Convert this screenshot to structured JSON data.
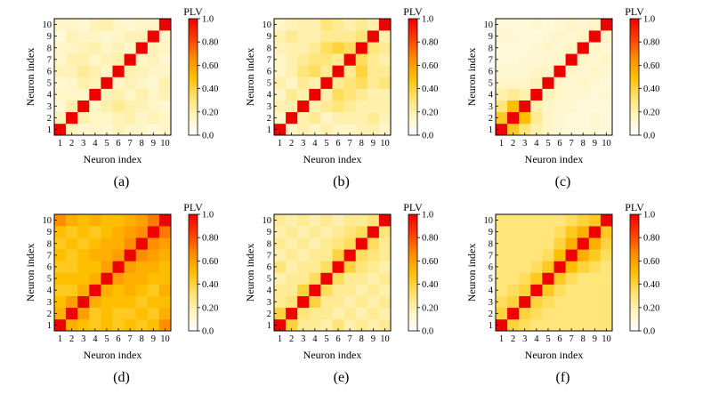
{
  "figure": {
    "shared": {
      "xlabel": "Neuron index",
      "ylabel": "Neuron index",
      "colorbar_title": "PLV",
      "tick_labels": [
        "1",
        "2",
        "3",
        "4",
        "5",
        "6",
        "7",
        "8",
        "9",
        "10"
      ],
      "colorbar_ticks": [
        "0.0",
        "0.20",
        "0.40",
        "0.60",
        "0.80",
        "1.0"
      ],
      "colormap": [
        "#ffffff",
        "#fff4c0",
        "#ffe168",
        "#ffbf00",
        "#ff8a00",
        "#ff3c00",
        "#ee0000"
      ]
    }
  },
  "chart_data": [
    {
      "type": "heatmap",
      "panel_label": "(a)",
      "title": "",
      "xlabel": "Neuron index",
      "ylabel": "Neuron index",
      "x_categories": [
        "1",
        "2",
        "3",
        "4",
        "5",
        "6",
        "7",
        "8",
        "9",
        "10"
      ],
      "y_categories": [
        "1",
        "2",
        "3",
        "4",
        "5",
        "6",
        "7",
        "8",
        "9",
        "10"
      ],
      "colorbar": {
        "label": "PLV",
        "range": [
          0,
          1
        ],
        "ticks": [
          "0.0",
          "0.20",
          "0.40",
          "0.60",
          "0.80",
          "1.0"
        ]
      },
      "matrix": [
        [
          1.0,
          0.18,
          0.12,
          0.15,
          0.12,
          0.18,
          0.14,
          0.15,
          0.1,
          0.15
        ],
        [
          0.18,
          1.0,
          0.2,
          0.15,
          0.15,
          0.18,
          0.2,
          0.15,
          0.18,
          0.15
        ],
        [
          0.12,
          0.2,
          1.0,
          0.15,
          0.2,
          0.25,
          0.2,
          0.18,
          0.15,
          0.12
        ],
        [
          0.15,
          0.15,
          0.15,
          1.0,
          0.18,
          0.2,
          0.15,
          0.2,
          0.15,
          0.18
        ],
        [
          0.12,
          0.15,
          0.2,
          0.18,
          1.0,
          0.15,
          0.18,
          0.15,
          0.12,
          0.2
        ],
        [
          0.18,
          0.18,
          0.25,
          0.2,
          0.15,
          1.0,
          0.2,
          0.18,
          0.15,
          0.15
        ],
        [
          0.14,
          0.2,
          0.2,
          0.15,
          0.18,
          0.2,
          1.0,
          0.15,
          0.18,
          0.12
        ],
        [
          0.15,
          0.15,
          0.18,
          0.2,
          0.15,
          0.18,
          0.15,
          1.0,
          0.18,
          0.15
        ],
        [
          0.1,
          0.18,
          0.15,
          0.15,
          0.12,
          0.15,
          0.18,
          0.18,
          1.0,
          0.15
        ],
        [
          0.15,
          0.15,
          0.12,
          0.18,
          0.2,
          0.15,
          0.12,
          0.15,
          0.15,
          1.0
        ]
      ]
    },
    {
      "type": "heatmap",
      "panel_label": "(b)",
      "title": "",
      "xlabel": "Neuron index",
      "ylabel": "Neuron index",
      "x_categories": [
        "1",
        "2",
        "3",
        "4",
        "5",
        "6",
        "7",
        "8",
        "9",
        "10"
      ],
      "y_categories": [
        "1",
        "2",
        "3",
        "4",
        "5",
        "6",
        "7",
        "8",
        "9",
        "10"
      ],
      "colorbar": {
        "label": "PLV",
        "range": [
          0,
          1
        ],
        "ticks": [
          "0.0",
          "0.20",
          "0.40",
          "0.60",
          "0.80",
          "1.0"
        ]
      },
      "matrix": [
        [
          1.0,
          0.15,
          0.2,
          0.15,
          0.2,
          0.15,
          0.15,
          0.18,
          0.2,
          0.15
        ],
        [
          0.15,
          1.0,
          0.2,
          0.25,
          0.15,
          0.2,
          0.2,
          0.2,
          0.25,
          0.18
        ],
        [
          0.2,
          0.2,
          1.0,
          0.2,
          0.25,
          0.3,
          0.25,
          0.2,
          0.2,
          0.2
        ],
        [
          0.15,
          0.25,
          0.2,
          1.0,
          0.2,
          0.35,
          0.3,
          0.25,
          0.2,
          0.2
        ],
        [
          0.2,
          0.15,
          0.25,
          0.2,
          1.0,
          0.25,
          0.3,
          0.35,
          0.25,
          0.3
        ],
        [
          0.15,
          0.2,
          0.3,
          0.35,
          0.25,
          1.0,
          0.25,
          0.4,
          0.25,
          0.25
        ],
        [
          0.15,
          0.2,
          0.25,
          0.3,
          0.3,
          0.25,
          1.0,
          0.35,
          0.25,
          0.2
        ],
        [
          0.18,
          0.2,
          0.2,
          0.25,
          0.35,
          0.4,
          0.35,
          1.0,
          0.3,
          0.25
        ],
        [
          0.2,
          0.25,
          0.2,
          0.2,
          0.25,
          0.25,
          0.25,
          0.3,
          1.0,
          0.2
        ],
        [
          0.15,
          0.18,
          0.2,
          0.2,
          0.3,
          0.25,
          0.2,
          0.25,
          0.2,
          1.0
        ]
      ]
    },
    {
      "type": "heatmap",
      "panel_label": "(c)",
      "title": "",
      "xlabel": "Neuron index",
      "ylabel": "Neuron index",
      "x_categories": [
        "1",
        "2",
        "3",
        "4",
        "5",
        "6",
        "7",
        "8",
        "9",
        "10"
      ],
      "y_categories": [
        "1",
        "2",
        "3",
        "4",
        "5",
        "6",
        "7",
        "8",
        "9",
        "10"
      ],
      "colorbar": {
        "label": "PLV",
        "range": [
          0,
          1
        ],
        "ticks": [
          "0.0",
          "0.20",
          "0.40",
          "0.60",
          "0.80",
          "1.0"
        ]
      },
      "matrix": [
        [
          1.0,
          0.45,
          0.3,
          0.2,
          0.15,
          0.12,
          0.1,
          0.1,
          0.12,
          0.1
        ],
        [
          0.45,
          1.0,
          0.5,
          0.25,
          0.15,
          0.12,
          0.1,
          0.1,
          0.12,
          0.1
        ],
        [
          0.3,
          0.5,
          1.0,
          0.2,
          0.15,
          0.12,
          0.12,
          0.1,
          0.1,
          0.1
        ],
        [
          0.2,
          0.25,
          0.2,
          1.0,
          0.18,
          0.15,
          0.12,
          0.12,
          0.1,
          0.12
        ],
        [
          0.15,
          0.15,
          0.15,
          0.18,
          1.0,
          0.15,
          0.12,
          0.15,
          0.12,
          0.1
        ],
        [
          0.12,
          0.12,
          0.12,
          0.15,
          0.15,
          1.0,
          0.15,
          0.12,
          0.15,
          0.12
        ],
        [
          0.1,
          0.1,
          0.12,
          0.12,
          0.12,
          0.15,
          1.0,
          0.15,
          0.12,
          0.15
        ],
        [
          0.1,
          0.1,
          0.1,
          0.12,
          0.15,
          0.12,
          0.15,
          1.0,
          0.15,
          0.12
        ],
        [
          0.12,
          0.12,
          0.1,
          0.1,
          0.12,
          0.15,
          0.12,
          0.15,
          1.0,
          0.15
        ],
        [
          0.1,
          0.1,
          0.1,
          0.12,
          0.1,
          0.12,
          0.15,
          0.12,
          0.15,
          1.0
        ]
      ]
    },
    {
      "type": "heatmap",
      "panel_label": "(d)",
      "title": "",
      "xlabel": "Neuron index",
      "ylabel": "Neuron index",
      "x_categories": [
        "1",
        "2",
        "3",
        "4",
        "5",
        "6",
        "7",
        "8",
        "9",
        "10"
      ],
      "y_categories": [
        "1",
        "2",
        "3",
        "4",
        "5",
        "6",
        "7",
        "8",
        "9",
        "10"
      ],
      "colorbar": {
        "label": "PLV",
        "range": [
          0,
          1
        ],
        "ticks": [
          "0.0",
          "0.20",
          "0.40",
          "0.60",
          "0.80",
          "1.0"
        ]
      },
      "matrix": [
        [
          1.0,
          0.55,
          0.5,
          0.45,
          0.5,
          0.45,
          0.5,
          0.45,
          0.5,
          0.65
        ],
        [
          0.55,
          1.0,
          0.6,
          0.45,
          0.5,
          0.45,
          0.45,
          0.5,
          0.45,
          0.55
        ],
        [
          0.5,
          0.6,
          1.0,
          0.55,
          0.5,
          0.5,
          0.5,
          0.45,
          0.5,
          0.5
        ],
        [
          0.45,
          0.45,
          0.55,
          1.0,
          0.55,
          0.5,
          0.55,
          0.5,
          0.45,
          0.55
        ],
        [
          0.5,
          0.5,
          0.5,
          0.55,
          1.0,
          0.6,
          0.55,
          0.55,
          0.5,
          0.5
        ],
        [
          0.45,
          0.45,
          0.5,
          0.5,
          0.6,
          1.0,
          0.6,
          0.55,
          0.55,
          0.5
        ],
        [
          0.5,
          0.45,
          0.5,
          0.55,
          0.55,
          0.6,
          1.0,
          0.65,
          0.6,
          0.55
        ],
        [
          0.45,
          0.5,
          0.45,
          0.5,
          0.55,
          0.55,
          0.65,
          1.0,
          0.65,
          0.6
        ],
        [
          0.5,
          0.45,
          0.5,
          0.45,
          0.5,
          0.55,
          0.6,
          0.65,
          1.0,
          0.7
        ],
        [
          0.65,
          0.55,
          0.5,
          0.55,
          0.5,
          0.5,
          0.55,
          0.6,
          0.7,
          1.0
        ]
      ]
    },
    {
      "type": "heatmap",
      "panel_label": "(e)",
      "title": "",
      "xlabel": "Neuron index",
      "ylabel": "Neuron index",
      "x_categories": [
        "1",
        "2",
        "3",
        "4",
        "5",
        "6",
        "7",
        "8",
        "9",
        "10"
      ],
      "y_categories": [
        "1",
        "2",
        "3",
        "4",
        "5",
        "6",
        "7",
        "8",
        "9",
        "10"
      ],
      "colorbar": {
        "label": "PLV",
        "range": [
          0,
          1
        ],
        "ticks": [
          "0.0",
          "0.20",
          "0.40",
          "0.60",
          "0.80",
          "1.0"
        ]
      },
      "matrix": [
        [
          1.0,
          0.4,
          0.25,
          0.25,
          0.2,
          0.3,
          0.2,
          0.25,
          0.2,
          0.25
        ],
        [
          0.4,
          1.0,
          0.3,
          0.25,
          0.25,
          0.2,
          0.25,
          0.2,
          0.25,
          0.2
        ],
        [
          0.25,
          0.3,
          1.0,
          0.4,
          0.25,
          0.25,
          0.2,
          0.25,
          0.2,
          0.25
        ],
        [
          0.25,
          0.25,
          0.4,
          1.0,
          0.35,
          0.25,
          0.25,
          0.2,
          0.25,
          0.2
        ],
        [
          0.2,
          0.25,
          0.25,
          0.35,
          1.0,
          0.35,
          0.25,
          0.25,
          0.2,
          0.25
        ],
        [
          0.3,
          0.2,
          0.25,
          0.25,
          0.35,
          1.0,
          0.4,
          0.3,
          0.25,
          0.2
        ],
        [
          0.2,
          0.25,
          0.2,
          0.25,
          0.25,
          0.4,
          1.0,
          0.35,
          0.3,
          0.25
        ],
        [
          0.25,
          0.2,
          0.25,
          0.2,
          0.25,
          0.3,
          0.35,
          1.0,
          0.35,
          0.25
        ],
        [
          0.2,
          0.25,
          0.2,
          0.25,
          0.2,
          0.25,
          0.3,
          0.35,
          1.0,
          0.3
        ],
        [
          0.25,
          0.2,
          0.25,
          0.2,
          0.25,
          0.2,
          0.25,
          0.25,
          0.3,
          1.0
        ]
      ]
    },
    {
      "type": "heatmap",
      "panel_label": "(f)",
      "title": "",
      "xlabel": "Neuron index",
      "ylabel": "Neuron index",
      "x_categories": [
        "1",
        "2",
        "3",
        "4",
        "5",
        "6",
        "7",
        "8",
        "9",
        "10"
      ],
      "y_categories": [
        "1",
        "2",
        "3",
        "4",
        "5",
        "6",
        "7",
        "8",
        "9",
        "10"
      ],
      "colorbar": {
        "label": "PLV",
        "range": [
          0,
          1
        ],
        "ticks": [
          "0.0",
          "0.20",
          "0.40",
          "0.60",
          "0.80",
          "1.0"
        ]
      },
      "matrix": [
        [
          1.0,
          0.4,
          0.35,
          0.3,
          0.3,
          0.3,
          0.3,
          0.3,
          0.3,
          0.3
        ],
        [
          0.4,
          1.0,
          0.4,
          0.35,
          0.3,
          0.3,
          0.3,
          0.3,
          0.3,
          0.3
        ],
        [
          0.35,
          0.4,
          1.0,
          0.4,
          0.35,
          0.3,
          0.3,
          0.3,
          0.3,
          0.3
        ],
        [
          0.3,
          0.35,
          0.4,
          1.0,
          0.45,
          0.35,
          0.3,
          0.3,
          0.3,
          0.3
        ],
        [
          0.3,
          0.3,
          0.35,
          0.45,
          1.0,
          0.45,
          0.35,
          0.3,
          0.3,
          0.3
        ],
        [
          0.3,
          0.3,
          0.3,
          0.35,
          0.45,
          1.0,
          0.5,
          0.4,
          0.35,
          0.3
        ],
        [
          0.3,
          0.3,
          0.3,
          0.3,
          0.35,
          0.5,
          1.0,
          0.55,
          0.45,
          0.35
        ],
        [
          0.3,
          0.3,
          0.3,
          0.3,
          0.3,
          0.4,
          0.55,
          1.0,
          0.55,
          0.4
        ],
        [
          0.3,
          0.3,
          0.3,
          0.3,
          0.3,
          0.35,
          0.45,
          0.55,
          1.0,
          0.45
        ],
        [
          0.3,
          0.3,
          0.3,
          0.3,
          0.3,
          0.3,
          0.35,
          0.4,
          0.45,
          1.0
        ]
      ]
    }
  ]
}
